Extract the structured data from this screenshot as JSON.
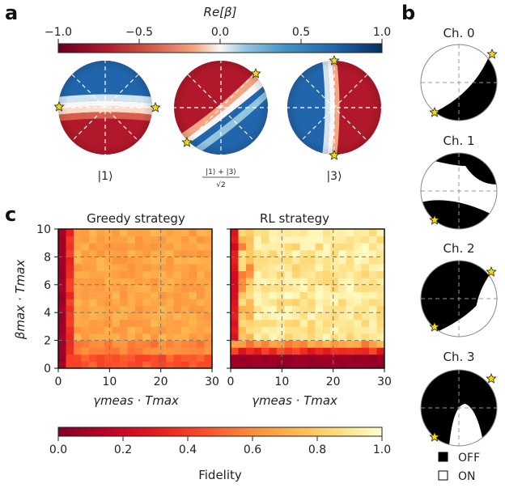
{
  "panels": {
    "a": "a",
    "b": "b",
    "c": "c"
  },
  "colorbar_beta": {
    "label": "Re[β]",
    "ticks": [
      "−1.0",
      "−0.5",
      "0.0",
      "0.5",
      "1.0"
    ],
    "values": [
      -1.0,
      -0.5,
      0.0,
      0.5,
      1.0
    ],
    "colormap": "RdBu"
  },
  "states": {
    "s1": "|1⟩",
    "s13_num": "|1⟩ + |3⟩",
    "s13_den": "√2",
    "s3": "|3⟩"
  },
  "channels": [
    {
      "label": "Ch. 0"
    },
    {
      "label": "Ch. 1"
    },
    {
      "label": "Ch. 2"
    },
    {
      "label": "Ch. 3"
    }
  ],
  "legend": {
    "off": "OFF",
    "on": "ON",
    "off_color": "#000000",
    "on_color": "#ffffff"
  },
  "colorbar_fidelity": {
    "label": "Fidelity",
    "ticks": [
      "0.0",
      "0.2",
      "0.4",
      "0.6",
      "0.8",
      "1.0"
    ],
    "values": [
      0.0,
      0.2,
      0.4,
      0.6,
      0.8,
      1.0
    ],
    "colormap": "YlOrRd_r"
  },
  "chart_data": [
    {
      "type": "heatmap",
      "title": "Greedy strategy",
      "xlabel": "γmeas · Tmax",
      "ylabel": "βmax · Tmax",
      "xlim": [
        0,
        30
      ],
      "ylim": [
        0,
        10
      ],
      "xticks": [
        "0",
        "10",
        "20",
        "30"
      ],
      "yticks": [
        "0",
        "2",
        "4",
        "6",
        "8",
        "10"
      ],
      "grid": true,
      "rows": 20,
      "cols": 20,
      "description_values": "fidelity ~0.0 at γ≈0 column, rising to ~0.65 across the rest; lower rows slightly darker"
    },
    {
      "type": "heatmap",
      "title": "RL strategy",
      "xlabel": "γmeas · Tmax",
      "ylabel": "",
      "xlim": [
        0,
        30
      ],
      "ylim": [
        0,
        10
      ],
      "xticks": [
        "0",
        "10",
        "20",
        "30"
      ],
      "yticks": [],
      "grid": true,
      "rows": 20,
      "cols": 20,
      "description_values": "fidelity ~0.0 in bottom rows (β<1), high ~0.85-0.95 elsewhere, lower near γ≈0"
    }
  ]
}
